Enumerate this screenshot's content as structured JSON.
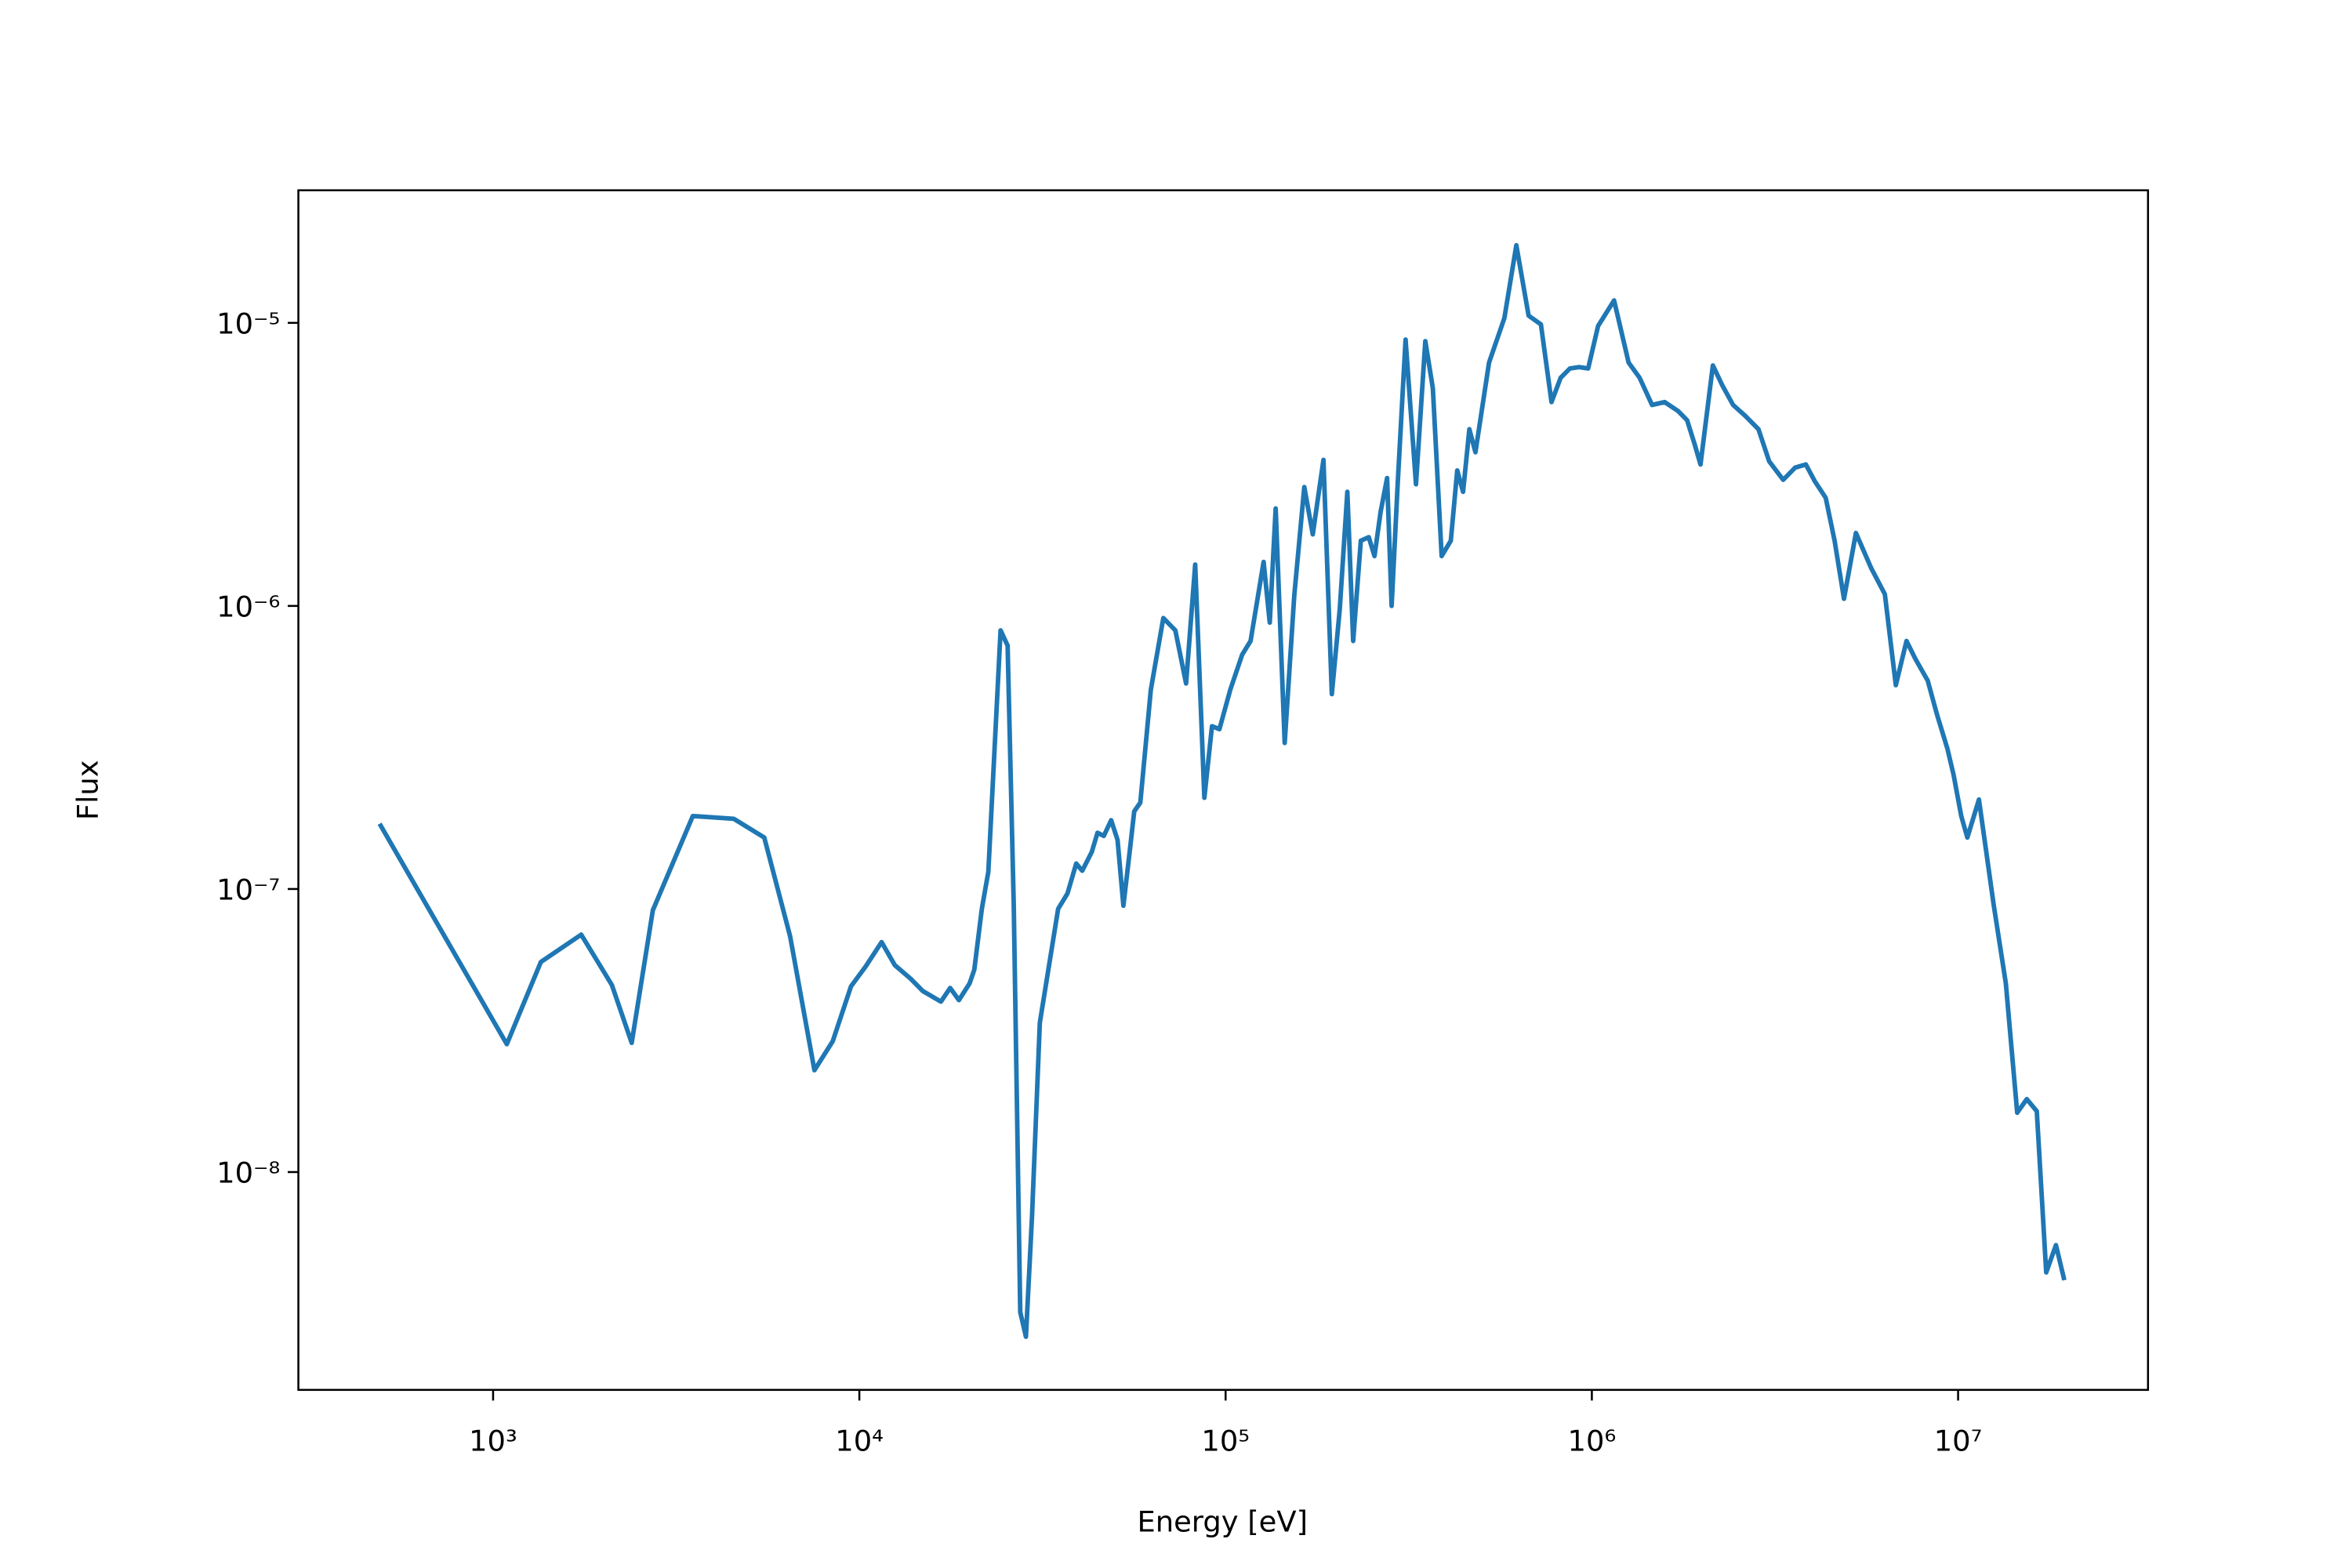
{
  "chart_data": {
    "type": "line",
    "xlabel": "Energy [eV]",
    "ylabel": "Flux",
    "xscale": "log",
    "yscale": "log",
    "grid": false,
    "xlim": [
      294,
      33000000
    ],
    "ylim": [
      1.7e-09,
      2.94e-05
    ],
    "xticks": [
      {
        "value": 1000,
        "label": "10³"
      },
      {
        "value": 10000,
        "label": "10⁴"
      },
      {
        "value": 100000,
        "label": "10⁵"
      },
      {
        "value": 1000000,
        "label": "10⁶"
      },
      {
        "value": 10000000,
        "label": "10⁷"
      }
    ],
    "yticks": [
      {
        "value": 1e-08,
        "label": "10⁻⁸"
      },
      {
        "value": 1e-07,
        "label": "10⁻⁷"
      },
      {
        "value": 1e-06,
        "label": "10⁻⁶"
      },
      {
        "value": 1e-05,
        "label": "10⁻⁵"
      }
    ],
    "x": [
      490,
      1090,
      1350,
      1740,
      2110,
      2390,
      2730,
      3510,
      4540,
      5500,
      6470,
      7540,
      8460,
      9490,
      10400,
      11500,
      12500,
      13800,
      14900,
      16700,
      17700,
      18700,
      20000,
      20600,
      21600,
      22500,
      24300,
      25400,
      26400,
      27500,
      28500,
      29600,
      31100,
      34900,
      37000,
      39100,
      40600,
      43100,
      44700,
      46500,
      48700,
      50700,
      52600,
      54700,
      56300,
      58500,
      62500,
      67600,
      72900,
      78000,
      82600,
      87500,
      91800,
      96200,
      103000,
      111000,
      117000,
      127000,
      132000,
      137000,
      145000,
      154000,
      164000,
      173000,
      185000,
      195000,
      205000,
      215000,
      223000,
      234000,
      246000,
      255000,
      265000,
      276000,
      284000,
      295000,
      310000,
      331000,
      351000,
      368000,
      389000,
      412000,
      429000,
      445000,
      463000,
      481000,
      524000,
      577000,
      622000,
      672000,
      726000,
      776000,
      822000,
      871000,
      923000,
      977000,
      1040000,
      1150000,
      1260000,
      1350000,
      1460000,
      1580000,
      1720000,
      1820000,
      1910000,
      1980000,
      2140000,
      2270000,
      2430000,
      2620000,
      2850000,
      3050000,
      3330000,
      3590000,
      3840000,
      4060000,
      4350000,
      4600000,
      4880000,
      5260000,
      5790000,
      6310000,
      6760000,
      7230000,
      7650000,
      8260000,
      8750000,
      9350000,
      9720000,
      10200000,
      10600000,
      11400000,
      12500000,
      13500000,
      14500000,
      15400000,
      16400000,
      17400000,
      18500000,
      19500000
    ],
    "series": [
      {
        "color": "#1f77b4",
        "values": [
          1.7e-07,
          2.83e-08,
          5.52e-08,
          6.9e-08,
          4.58e-08,
          2.86e-08,
          8.41e-08,
          1.81e-07,
          1.77e-07,
          1.52e-07,
          6.81e-08,
          2.29e-08,
          2.9e-08,
          4.53e-08,
          5.32e-08,
          6.49e-08,
          5.38e-08,
          4.82e-08,
          4.36e-08,
          4e-08,
          4.47e-08,
          4.05e-08,
          4.64e-08,
          5.19e-08,
          8.51e-08,
          1.15e-07,
          8.2e-07,
          7.24e-07,
          8.73e-08,
          3.2e-09,
          2.62e-09,
          6.9e-09,
          3.37e-08,
          8.51e-08,
          9.64e-08,
          1.23e-07,
          1.16e-07,
          1.35e-07,
          1.58e-07,
          1.54e-07,
          1.75e-07,
          1.49e-07,
          8.73e-08,
          1.35e-07,
          1.88e-07,
          2.02e-07,
          5.06e-07,
          9.06e-07,
          8.2e-07,
          5.32e-07,
          1.4e-06,
          2.1e-07,
          3.76e-07,
          3.67e-07,
          5.06e-07,
          6.73e-07,
          7.52e-07,
          1.43e-06,
          8.73e-07,
          2.21e-06,
          3.28e-07,
          1.09e-06,
          2.63e-06,
          1.79e-06,
          3.28e-06,
          4.88e-07,
          9.75e-07,
          2.53e-06,
          7.52e-07,
          1.7e-06,
          1.75e-06,
          1.5e-06,
          2.15e-06,
          2.83e-06,
          1e-06,
          2.69e-06,
          8.73e-06,
          2.69e-06,
          8.62e-06,
          5.87e-06,
          1.5e-06,
          1.7e-06,
          3.01e-06,
          2.53e-06,
          4.21e-06,
          3.49e-06,
          7.24e-06,
          1.04e-05,
          1.88e-05,
          1.06e-05,
          9.88e-06,
          5.25e-06,
          6.4e-06,
          6.9e-06,
          6.98e-06,
          6.9e-06,
          9.75e-06,
          1.2e-05,
          7.24e-06,
          6.4e-06,
          5.13e-06,
          5.25e-06,
          4.88e-06,
          4.53e-06,
          3.71e-06,
          3.16e-06,
          7.07e-06,
          6.02e-06,
          5.13e-06,
          4.7e-06,
          4.21e-06,
          3.24e-06,
          2.79e-06,
          3.08e-06,
          3.16e-06,
          2.76e-06,
          2.41e-06,
          1.7e-06,
          1.06e-06,
          1.81e-06,
          1.36e-06,
          1.1e-06,
          5.25e-07,
          7.52e-07,
          6.49e-07,
          5.45e-07,
          4.15e-07,
          3.13e-07,
          2.53e-07,
          1.81e-07,
          1.52e-07,
          2.07e-07,
          8.83e-08,
          4.64e-08,
          1.62e-08,
          1.81e-08,
          1.64e-08,
          4.42e-09,
          5.52e-09,
          4.15e-09
        ]
      }
    ]
  }
}
